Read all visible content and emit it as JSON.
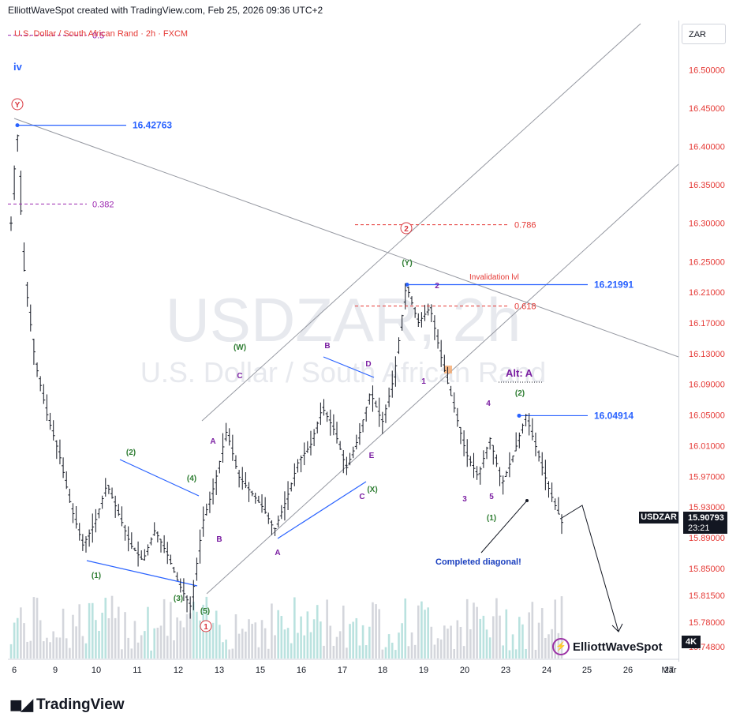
{
  "header": {
    "text": "ElliottWaveSpot created with TradingView.com, Feb 25, 2026 09:36 UTC+2"
  },
  "currency": "ZAR",
  "branding": {
    "tradingview": "TradingView",
    "elliottwavespot": "ElliottWaveSpot",
    "badge": "4K"
  },
  "last_price": {
    "symbol": "USDZAR",
    "price": "15.90793",
    "countdown": "23:21"
  },
  "chart_data": {
    "type": "candlestick",
    "title": "U.S. Dollar / South African Rand · 2h · FXCM",
    "watermark": {
      "symbol": "USDZAR, 2h",
      "name": "U.S. Dollar / South African Rand"
    },
    "y_axis": {
      "range": [
        15.745,
        16.56
      ],
      "ticks": [
        "16.50000",
        "16.45000",
        "16.40000",
        "16.35000",
        "16.30000",
        "16.25000",
        "16.21000",
        "16.17000",
        "16.13000",
        "16.09000",
        "16.05000",
        "16.01000",
        "15.97000",
        "15.93000",
        "15.89000",
        "15.85000",
        "15.81500",
        "15.78000",
        "15.74800"
      ]
    },
    "x_axis": {
      "ticks": [
        "6",
        "9",
        "10",
        "11",
        "12",
        "13",
        "15",
        "16",
        "17",
        "18",
        "19",
        "20",
        "23",
        "24",
        "25",
        "26",
        "27",
        "Mar"
      ]
    },
    "price_path": [
      [
        0,
        16.3
      ],
      [
        1,
        16.43
      ],
      [
        2,
        16.25
      ],
      [
        4,
        16.12
      ],
      [
        6,
        16.05
      ],
      [
        8,
        16.0
      ],
      [
        10,
        15.93
      ],
      [
        12,
        15.88
      ],
      [
        14,
        15.91
      ],
      [
        16,
        15.96
      ],
      [
        18,
        15.92
      ],
      [
        20,
        15.88
      ],
      [
        22,
        15.86
      ],
      [
        24,
        15.9
      ],
      [
        26,
        15.87
      ],
      [
        28,
        15.83
      ],
      [
        30,
        15.8
      ],
      [
        32,
        15.91
      ],
      [
        34,
        15.96
      ],
      [
        36,
        16.03
      ],
      [
        38,
        15.97
      ],
      [
        40,
        15.95
      ],
      [
        42,
        15.93
      ],
      [
        44,
        15.9
      ],
      [
        46,
        15.94
      ],
      [
        48,
        15.99
      ],
      [
        50,
        16.01
      ],
      [
        52,
        16.06
      ],
      [
        54,
        16.03
      ],
      [
        56,
        15.98
      ],
      [
        58,
        16.02
      ],
      [
        60,
        16.08
      ],
      [
        62,
        16.04
      ],
      [
        64,
        16.1
      ],
      [
        66,
        16.22
      ],
      [
        68,
        16.17
      ],
      [
        70,
        16.19
      ],
      [
        72,
        16.12
      ],
      [
        74,
        16.06
      ],
      [
        76,
        16.0
      ],
      [
        78,
        15.97
      ],
      [
        80,
        16.02
      ],
      [
        82,
        15.96
      ],
      [
        84,
        16.0
      ],
      [
        86,
        16.05
      ],
      [
        88,
        16.0
      ],
      [
        90,
        15.95
      ],
      [
        92,
        15.91
      ]
    ],
    "levels": [
      {
        "label": "16.42763",
        "value": 16.42763
      },
      {
        "label": "16.21991",
        "value": 16.21991
      },
      {
        "label": "16.04914",
        "value": 16.04914
      }
    ],
    "fib_levels": [
      {
        "label": "0.5",
        "value": 16.545
      },
      {
        "label": "0.382",
        "value": 16.325
      },
      {
        "label": "0.786",
        "value": 16.298
      },
      {
        "label": "0.618",
        "value": 16.192
      }
    ],
    "annotations": {
      "invalidation": "Invalidation lvl",
      "alt": "Alt: A",
      "completed": "Completed diagonal!",
      "degree": "iv"
    },
    "wave_labels": [
      {
        "text": "Y",
        "color": "#d9363e",
        "circle": true
      },
      {
        "text": "2",
        "color": "#d9363e",
        "circle": true
      },
      {
        "text": "1",
        "color": "#d9363e",
        "circle": true
      },
      {
        "text": "(Y)",
        "color": "#2e7d32"
      },
      {
        "text": "(W)",
        "color": "#2e7d32"
      },
      {
        "text": "(X)",
        "color": "#2e7d32"
      },
      {
        "text": "(1)",
        "color": "#2e7d32"
      },
      {
        "text": "(2)",
        "color": "#2e7d32"
      },
      {
        "text": "(3)",
        "color": "#2e7d32"
      },
      {
        "text": "(4)",
        "color": "#2e7d32"
      },
      {
        "text": "(5)",
        "color": "#2e7d32"
      },
      {
        "text": "(1)",
        "color": "#2e7d32"
      },
      {
        "text": "(2)",
        "color": "#2e7d32"
      },
      {
        "text": "A",
        "color": "#7b1fa2"
      },
      {
        "text": "B",
        "color": "#7b1fa2"
      },
      {
        "text": "C",
        "color": "#7b1fa2"
      },
      {
        "text": "A",
        "color": "#7b1fa2"
      },
      {
        "text": "B",
        "color": "#7b1fa2"
      },
      {
        "text": "C",
        "color": "#7b1fa2"
      },
      {
        "text": "D",
        "color": "#7b1fa2"
      },
      {
        "text": "E",
        "color": "#7b1fa2"
      },
      {
        "text": "1",
        "color": "#7b1fa2"
      },
      {
        "text": "2",
        "color": "#7b1fa2"
      },
      {
        "text": "3",
        "color": "#7b1fa2"
      },
      {
        "text": "4",
        "color": "#7b1fa2"
      },
      {
        "text": "5",
        "color": "#7b1fa2"
      }
    ],
    "colors": {
      "level_line": "#2962ff",
      "fib": "#9c27b0",
      "fib_red": "#e53935",
      "trend": "#9598a1",
      "volume": "#b2dfdb",
      "volume_grey": "#cfd2d8"
    }
  }
}
